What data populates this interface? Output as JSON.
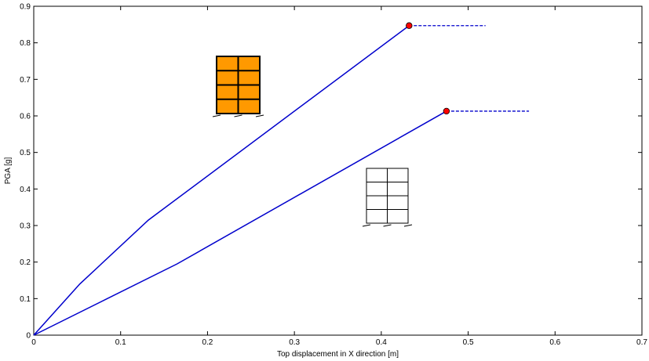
{
  "chart_data": {
    "type": "line",
    "title": "",
    "xlabel": "Top displacement in X direction [m]",
    "ylabel": "PGA [g]",
    "xlim": [
      0,
      0.7
    ],
    "ylim": [
      0,
      0.9
    ],
    "xticks": [
      0,
      0.1,
      0.2,
      0.3,
      0.4,
      0.5,
      0.6,
      0.7
    ],
    "yticks": [
      0,
      0.1,
      0.2,
      0.3,
      0.4,
      0.5,
      0.6,
      0.7,
      0.8,
      0.9
    ],
    "grid": false,
    "legend": "none",
    "series": [
      {
        "color": "#0000cc",
        "points": [
          [
            0,
            0
          ],
          [
            0.053,
            0.14
          ],
          [
            0.132,
            0.315
          ],
          [
            0.432,
            0.847
          ]
        ],
        "endpoint": [
          0.432,
          0.847
        ],
        "plateau_end_x": 0.52,
        "icon": "infilled-frame-icon"
      },
      {
        "color": "#0000cc",
        "points": [
          [
            0,
            0
          ],
          [
            0.165,
            0.195
          ],
          [
            0.475,
            0.613
          ]
        ],
        "endpoint": [
          0.475,
          0.613
        ],
        "plateau_end_x": 0.57,
        "icon": "bare-frame-icon"
      }
    ],
    "marker_color": "#ff0000",
    "infill_color": "#ff9900"
  }
}
